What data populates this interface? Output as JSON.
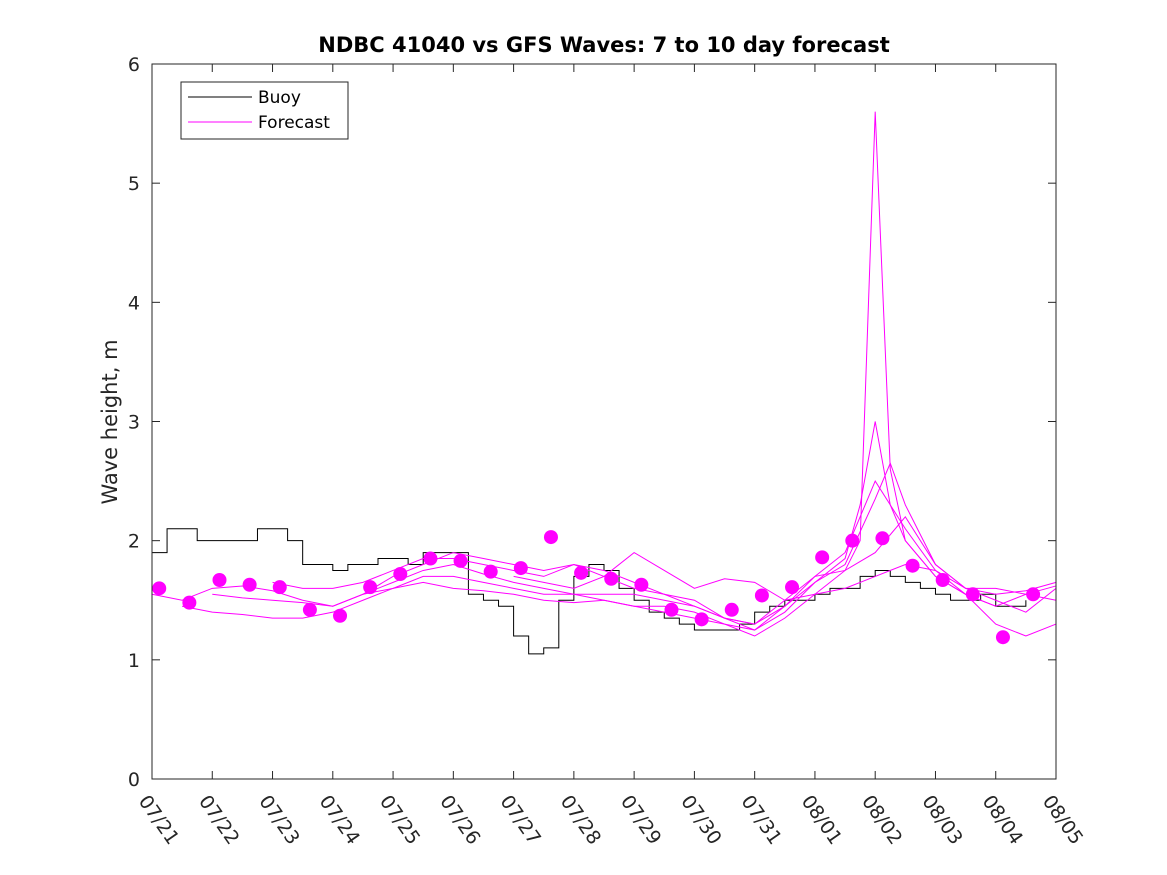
{
  "chart_data": {
    "type": "line",
    "title": "NDBC 41040 vs GFS Waves: 7 to 10 day forecast",
    "xlabel": "",
    "ylabel": "Wave height, m",
    "xlim": [
      0,
      15
    ],
    "ylim": [
      0,
      6
    ],
    "x_tick_labels": [
      "07/21",
      "07/22",
      "07/23",
      "07/24",
      "07/25",
      "07/26",
      "07/27",
      "07/28",
      "07/29",
      "07/30",
      "07/31",
      "08/01",
      "08/02",
      "08/03",
      "08/04",
      "08/05"
    ],
    "y_ticks": [
      0,
      1,
      2,
      3,
      4,
      5,
      6
    ],
    "grid": false,
    "legend_position": "top-left",
    "colors": {
      "buoy": "#000000",
      "forecast": "#ff00ff"
    },
    "series": [
      {
        "name": "Buoy",
        "kind": "buoy",
        "x": [
          0.0,
          0.25,
          0.5,
          0.75,
          1.0,
          1.25,
          1.5,
          1.75,
          2.0,
          2.25,
          2.5,
          2.75,
          3.0,
          3.25,
          3.5,
          3.75,
          4.0,
          4.25,
          4.5,
          4.75,
          5.0,
          5.25,
          5.5,
          5.75,
          6.0,
          6.25,
          6.5,
          6.75,
          7.0,
          7.25,
          7.5,
          7.75,
          8.0,
          8.25,
          8.5,
          8.75,
          9.0,
          9.25,
          9.5,
          9.75,
          10.0,
          10.25,
          10.5,
          10.75,
          11.0,
          11.25,
          11.5,
          11.75,
          12.0,
          12.25,
          12.5,
          12.75,
          13.0,
          13.25,
          13.5,
          13.75,
          14.0,
          14.25,
          14.5
        ],
        "y": [
          1.9,
          2.1,
          2.1,
          2.0,
          2.0,
          2.0,
          2.0,
          2.1,
          2.1,
          2.0,
          1.8,
          1.8,
          1.75,
          1.8,
          1.8,
          1.85,
          1.85,
          1.8,
          1.9,
          1.9,
          1.9,
          1.55,
          1.5,
          1.45,
          1.2,
          1.05,
          1.1,
          1.5,
          1.7,
          1.8,
          1.75,
          1.6,
          1.5,
          1.4,
          1.35,
          1.3,
          1.25,
          1.25,
          1.25,
          1.3,
          1.4,
          1.45,
          1.5,
          1.5,
          1.55,
          1.6,
          1.6,
          1.7,
          1.75,
          1.7,
          1.65,
          1.6,
          1.55,
          1.5,
          1.5,
          1.55,
          1.45,
          1.45,
          1.5
        ]
      },
      {
        "name": "Forecast",
        "kind": "forecast",
        "x": [
          0.0,
          0.5,
          1.0,
          1.5,
          2.0,
          2.5,
          3.0,
          3.5,
          4.0,
          4.5,
          5.0,
          5.5,
          6.0,
          6.5,
          7.0,
          7.5,
          8.0,
          8.5,
          9.0,
          9.5,
          10.0,
          10.5,
          11.0,
          11.5,
          12.0,
          12.5,
          13.0,
          13.5,
          14.0,
          14.5,
          15.0
        ],
        "y": [
          1.55,
          1.5,
          1.6,
          1.62,
          1.58,
          1.5,
          1.45,
          1.55,
          1.65,
          1.75,
          1.8,
          1.72,
          1.65,
          1.6,
          1.55,
          1.55,
          1.55,
          1.5,
          1.45,
          1.35,
          1.3,
          1.5,
          1.7,
          1.75,
          1.9,
          2.2,
          1.8,
          1.6,
          1.5,
          1.4,
          1.6
        ]
      },
      {
        "kind": "forecast",
        "x": [
          0.5,
          1.0,
          1.5,
          2.0,
          2.5,
          3.0,
          3.5,
          4.0,
          4.5,
          5.0,
          5.5,
          6.0,
          6.5,
          7.0,
          7.5,
          8.0,
          8.5,
          9.0,
          9.5,
          10.0,
          10.5,
          11.0,
          11.5,
          11.75,
          12.0,
          12.25,
          12.5,
          13.0,
          13.5,
          14.0,
          14.5,
          15.0
        ],
        "y": [
          1.45,
          1.4,
          1.38,
          1.35,
          1.35,
          1.4,
          1.5,
          1.6,
          1.65,
          1.6,
          1.58,
          1.55,
          1.5,
          1.48,
          1.5,
          1.45,
          1.4,
          1.35,
          1.3,
          1.25,
          1.45,
          1.65,
          1.85,
          2.3,
          3.0,
          2.3,
          2.0,
          1.7,
          1.55,
          1.3,
          1.2,
          1.3
        ]
      },
      {
        "kind": "forecast",
        "x": [
          1.0,
          1.5,
          2.0,
          2.5,
          3.0,
          3.5,
          4.0,
          4.5,
          5.0,
          5.5,
          6.0,
          6.5,
          7.0,
          7.5,
          8.0,
          8.5,
          9.0,
          9.5,
          10.0,
          10.5,
          11.0,
          11.5,
          11.75,
          12.0,
          12.25,
          12.5,
          13.0,
          13.5,
          14.0,
          14.5,
          15.0
        ],
        "y": [
          1.55,
          1.52,
          1.5,
          1.48,
          1.45,
          1.55,
          1.6,
          1.7,
          1.7,
          1.65,
          1.6,
          1.55,
          1.55,
          1.5,
          1.45,
          1.45,
          1.4,
          1.3,
          1.2,
          1.35,
          1.55,
          1.75,
          2.0,
          5.6,
          2.6,
          2.0,
          1.7,
          1.55,
          1.45,
          1.55,
          1.62
        ]
      },
      {
        "kind": "forecast",
        "x": [
          2.0,
          2.5,
          3.0,
          3.5,
          4.0,
          4.5,
          5.0,
          5.5,
          6.0,
          6.5,
          7.0,
          7.5,
          8.0,
          8.5,
          9.0,
          9.5,
          10.0,
          10.5,
          11.0,
          11.5,
          12.0,
          12.25,
          12.5,
          13.0,
          13.5,
          14.0,
          14.5,
          15.0
        ],
        "y": [
          1.65,
          1.6,
          1.6,
          1.65,
          1.75,
          1.85,
          1.85,
          1.8,
          1.75,
          1.7,
          1.8,
          1.75,
          1.65,
          1.55,
          1.5,
          1.35,
          1.25,
          1.4,
          1.65,
          1.8,
          2.35,
          2.65,
          2.3,
          1.8,
          1.6,
          1.55,
          1.58,
          1.65
        ]
      },
      {
        "kind": "forecast",
        "x": [
          3.5,
          4.0,
          4.5,
          5.0,
          5.5,
          6.0,
          6.5,
          7.0,
          7.5,
          8.0,
          8.5,
          9.0,
          9.5,
          10.0,
          10.5,
          11.0,
          11.5,
          12.0,
          12.5,
          13.0,
          13.5,
          14.0
        ],
        "y": [
          1.55,
          1.7,
          1.8,
          1.9,
          1.85,
          1.8,
          1.75,
          1.8,
          1.7,
          1.6,
          1.55,
          1.45,
          1.35,
          1.3,
          1.45,
          1.7,
          1.9,
          2.5,
          2.1,
          1.75,
          1.55,
          1.45
        ]
      },
      {
        "kind": "forecast",
        "x": [
          6.0,
          6.5,
          7.0,
          7.5,
          8.0,
          8.5,
          9.0,
          9.5,
          10.0,
          10.5,
          11.0,
          11.5,
          12.0,
          12.5,
          13.0,
          13.5,
          14.0,
          14.5,
          15.0
        ],
        "y": [
          1.7,
          1.65,
          1.6,
          1.7,
          1.9,
          1.75,
          1.6,
          1.68,
          1.65,
          1.5,
          1.55,
          1.6,
          1.7,
          1.8,
          1.75,
          1.6,
          1.6,
          1.55,
          1.5
        ]
      },
      {
        "kind": "markers",
        "x": [
          0.12,
          0.62,
          1.12,
          1.62,
          2.12,
          2.62,
          3.12,
          3.62,
          4.12,
          4.62,
          5.12,
          5.62,
          6.12,
          6.62,
          7.12,
          7.62,
          8.12,
          8.62,
          9.12,
          9.62,
          10.12,
          10.62,
          11.12,
          11.62,
          12.12,
          12.62,
          13.12,
          13.62,
          14.12,
          14.62
        ],
        "y": [
          1.6,
          1.48,
          1.67,
          1.63,
          1.61,
          1.42,
          1.37,
          1.61,
          1.72,
          1.85,
          1.83,
          1.74,
          1.77,
          2.03,
          1.73,
          1.68,
          1.63,
          1.42,
          1.34,
          1.42,
          1.54,
          1.61,
          1.86,
          2.0,
          2.02,
          1.79,
          1.67,
          1.55,
          1.19,
          1.55
        ]
      }
    ]
  }
}
